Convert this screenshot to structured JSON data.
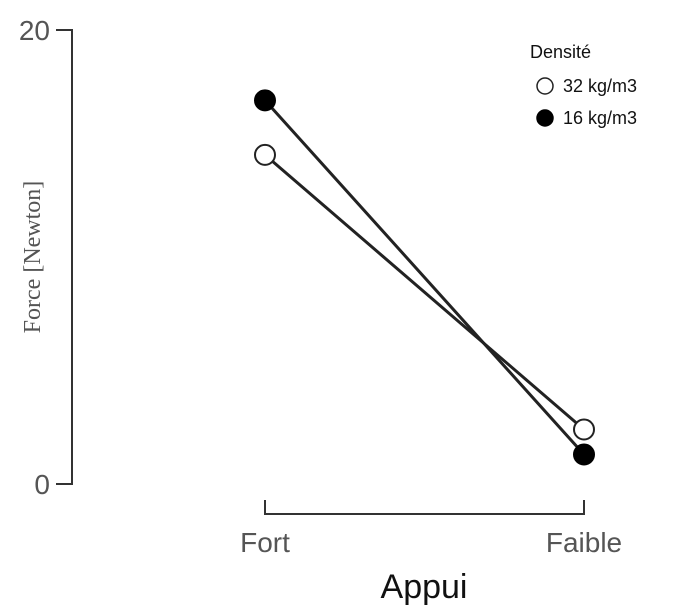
{
  "chart_data": {
    "type": "line",
    "categories": [
      "Fort",
      "Faible"
    ],
    "xlabel": "Appui",
    "ylabel": "Force [Newton]",
    "ylim": [
      0,
      20
    ],
    "yticks": [
      "0",
      "20"
    ],
    "grid": false,
    "legend": {
      "title": "Densité",
      "placement": "top-right"
    },
    "series": [
      {
        "name": "32 kg/m3",
        "values": [
          14.5,
          2.4
        ],
        "marker": "open-circle",
        "color": "#222222"
      },
      {
        "name": "16 kg/m3",
        "values": [
          16.9,
          1.3
        ],
        "marker": "filled-circle",
        "color": "#000000"
      }
    ]
  }
}
